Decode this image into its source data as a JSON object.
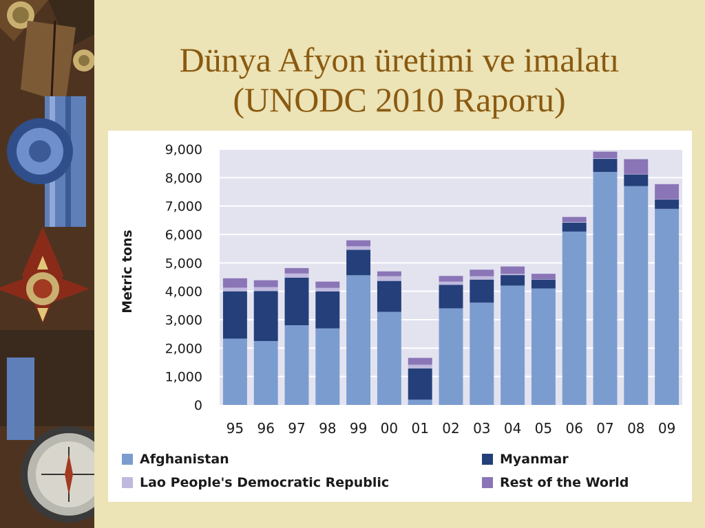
{
  "slide": {
    "title_line1": "Dünya Afyon üretimi ve imalatı",
    "title_line2": "(UNODC 2010 Raporu)"
  },
  "colors": {
    "background": "#ece3b6",
    "title": "#8a5a10",
    "plot_bg": "#e3e3f0",
    "afghanistan": "#7b9ccf",
    "myanmar": "#243f7a",
    "lao": "#bfb9de",
    "rest": "#8a75b6"
  },
  "chart_data": {
    "type": "bar",
    "stacked": true,
    "categories": [
      "95",
      "96",
      "97",
      "98",
      "99",
      "00",
      "01",
      "02",
      "03",
      "04",
      "05",
      "06",
      "07",
      "08",
      "09"
    ],
    "ylabel": "Metric tons",
    "ylim": [
      0,
      9000
    ],
    "yticks": [
      "0",
      "1,000",
      "2,000",
      "3,000",
      "4,000",
      "5,000",
      "6,000",
      "7,000",
      "8,000",
      "9,000"
    ],
    "grid": true,
    "legend_position": "bottom",
    "series": [
      {
        "name": "Afghanistan",
        "color": "#7b9ccf",
        "values": [
          2335,
          2248,
          2804,
          2693,
          4565,
          3276,
          185,
          3400,
          3600,
          4200,
          4100,
          6100,
          8200,
          7700,
          6900
        ]
      },
      {
        "name": "Myanmar",
        "color": "#243f7a",
        "values": [
          1664,
          1760,
          1676,
          1303,
          895,
          1087,
          1097,
          828,
          810,
          370,
          312,
          315,
          460,
          410,
          330
        ]
      },
      {
        "name": "Lao People's Democratic Republic",
        "color": "#bfb9de",
        "values": [
          128,
          140,
          147,
          124,
          124,
          167,
          134,
          112,
          120,
          43,
          14,
          20,
          23,
          10,
          11
        ]
      },
      {
        "name": "Rest of the World",
        "color": "#8a75b6",
        "values": [
          330,
          240,
          190,
          220,
          210,
          170,
          240,
          200,
          230,
          260,
          190,
          180,
          230,
          530,
          530
        ]
      }
    ]
  }
}
